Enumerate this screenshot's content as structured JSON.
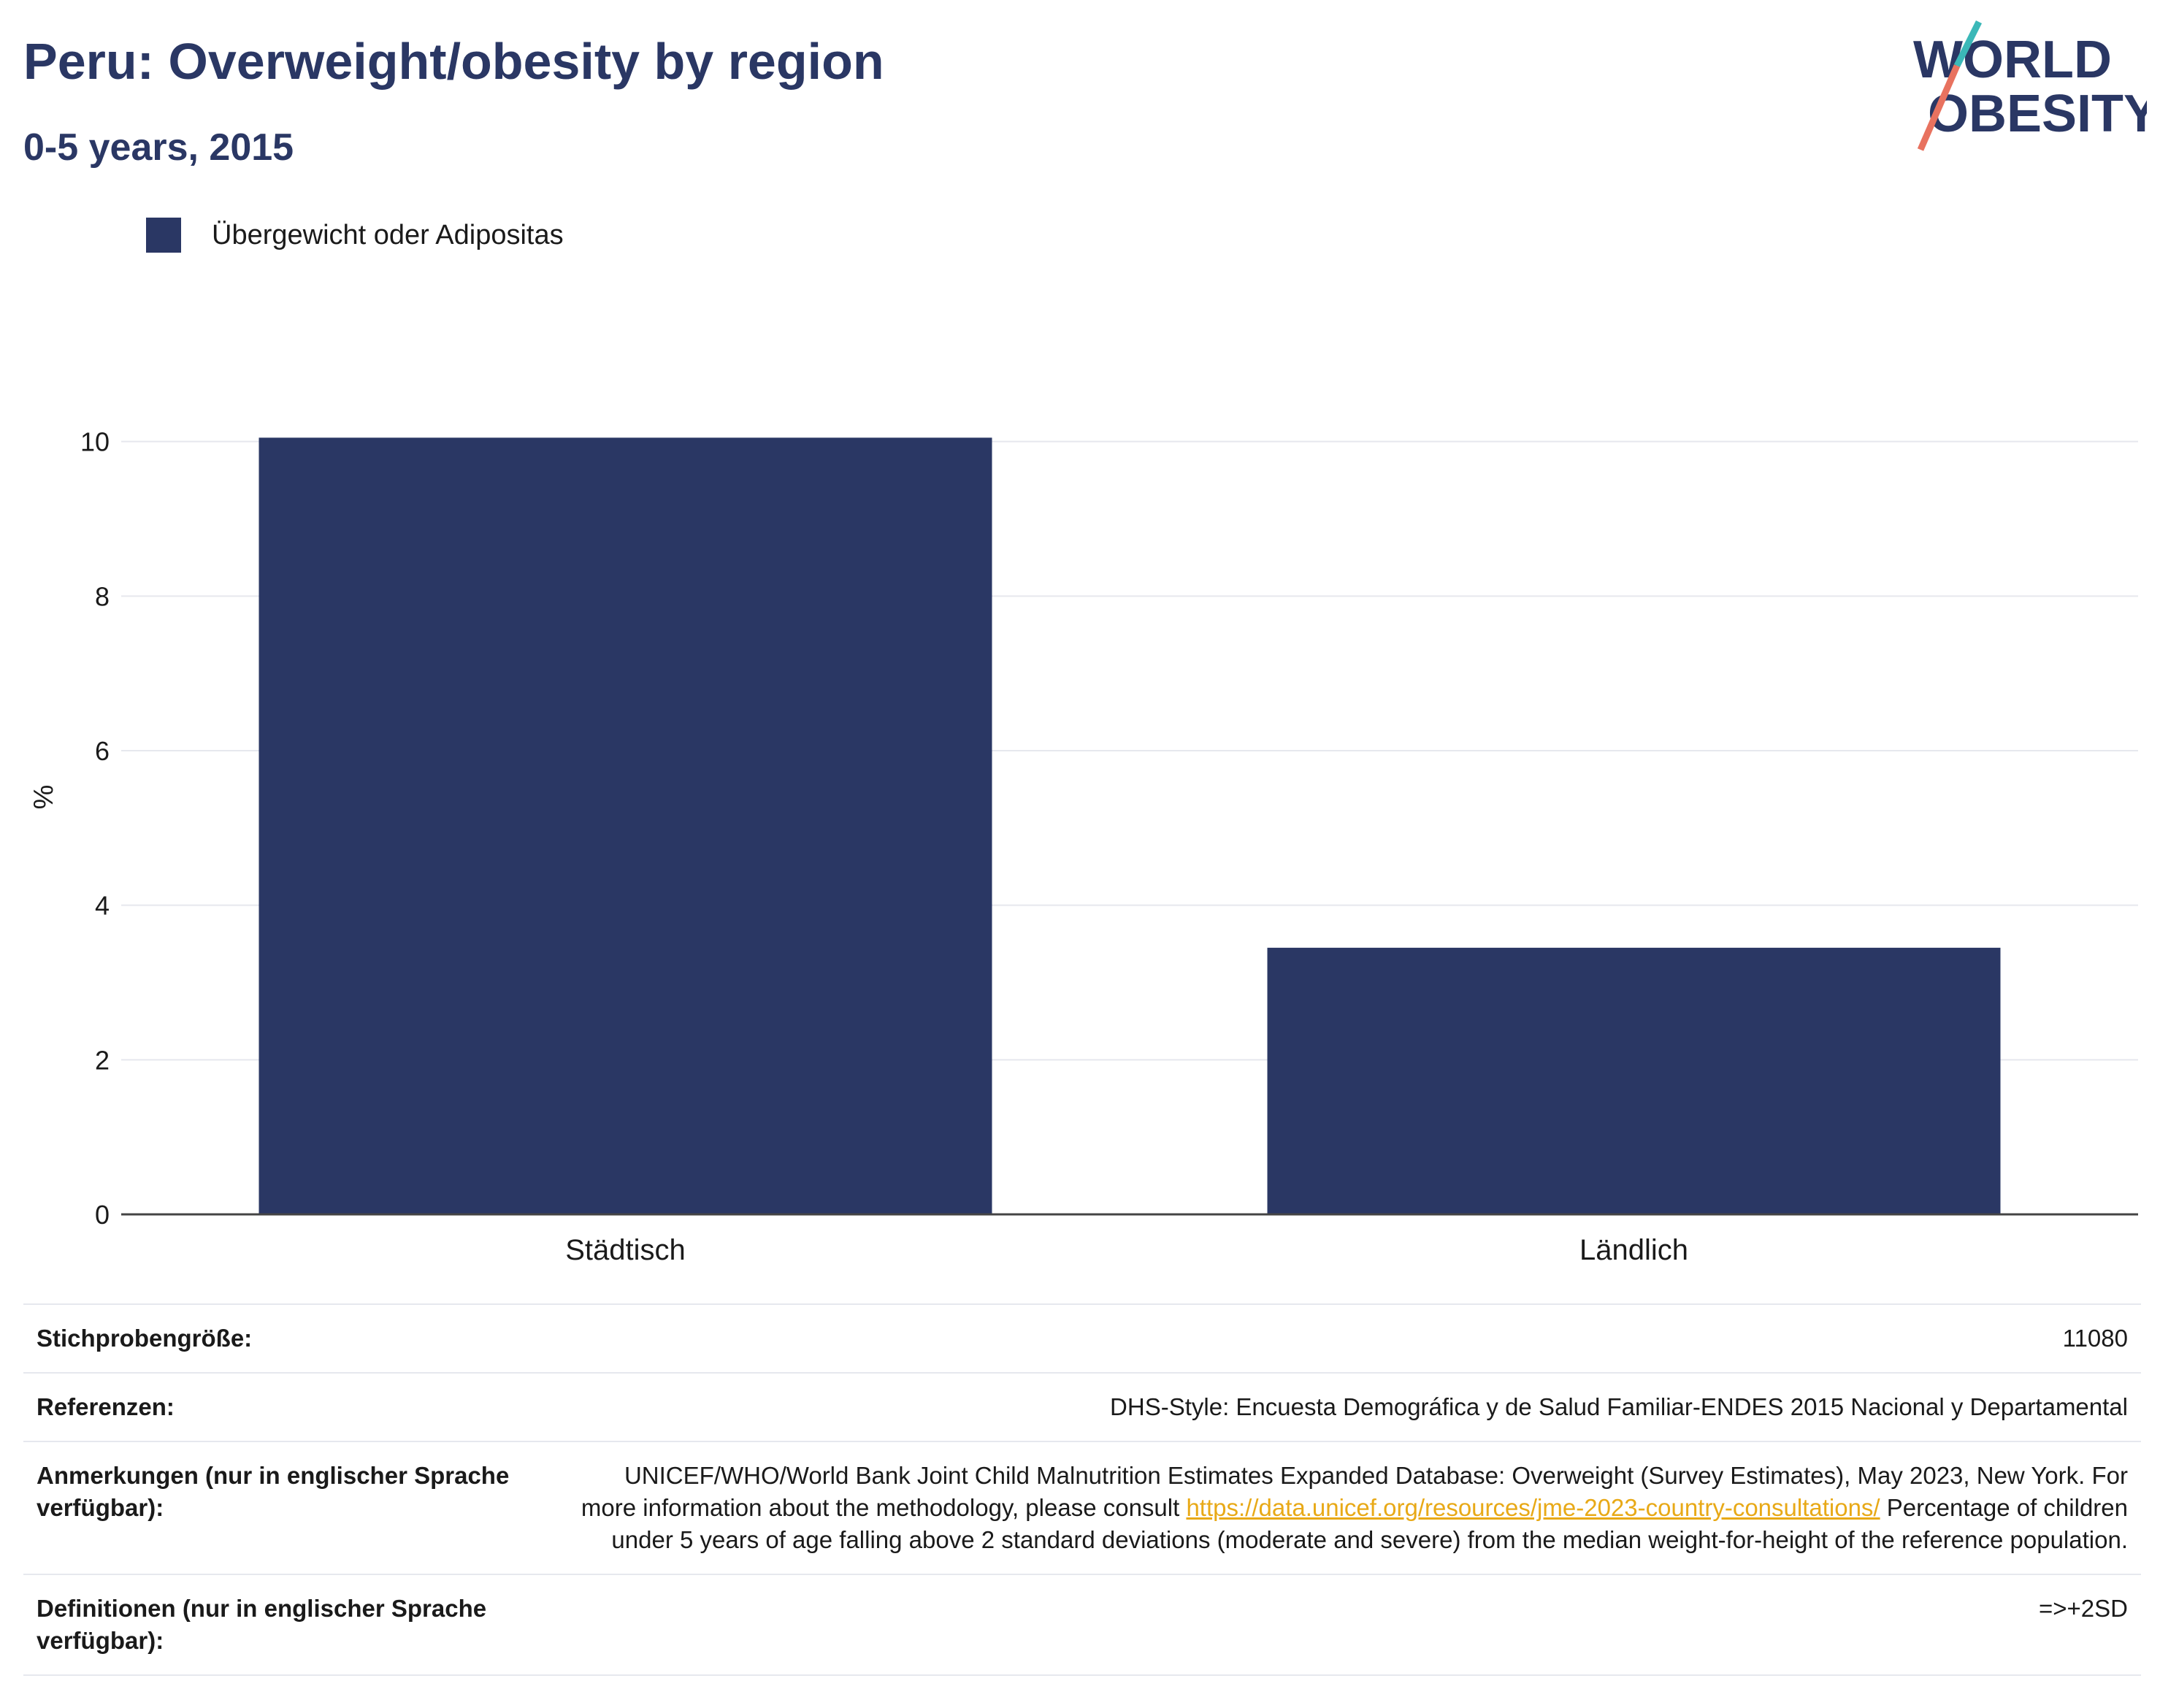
{
  "header": {
    "title": "Peru: Overweight/obesity by region",
    "subtitle": "0-5 years, 2015"
  },
  "logo": {
    "line1": "WORLD",
    "line2": "OBESITY"
  },
  "legend": {
    "label": "Übergewicht oder Adipositas",
    "color": "#2a3764"
  },
  "chart_data": {
    "type": "bar",
    "categories": [
      "Städtisch",
      "Ländlich"
    ],
    "series": [
      {
        "name": "Übergewicht oder Adipositas",
        "values": [
          10.05,
          3.45
        ],
        "color": "#2a3764"
      }
    ],
    "ylabel": "%",
    "ylim": [
      0,
      10.8
    ],
    "yticks": [
      0,
      2,
      4,
      6,
      8,
      10
    ],
    "grid": true
  },
  "info": {
    "sample_label": "Stichprobengröße:",
    "sample_value": "11080",
    "ref_label": "Referenzen:",
    "ref_value": "DHS-Style: Encuesta Demográfica y de Salud Familiar-ENDES 2015 Nacional y Departamental",
    "notes_label": "Anmerkungen (nur in englischer Sprache verfügbar):",
    "notes_text1": "UNICEF/WHO/World Bank Joint Child Malnutrition Estimates Expanded Database: Overweight (Survey Estimates), May 2023, New York. For more information about the methodology, please consult ",
    "notes_link": "https://data.unicef.org/resources/jme-2023-country-consultations/",
    "notes_text2": " Percentage of children under 5 years of age falling above 2 standard deviations (moderate and severe) from the median weight-for-height of the reference population.",
    "def_label": "Definitionen (nur in englischer Sprache verfügbar):",
    "def_value": "=>+2SD"
  }
}
